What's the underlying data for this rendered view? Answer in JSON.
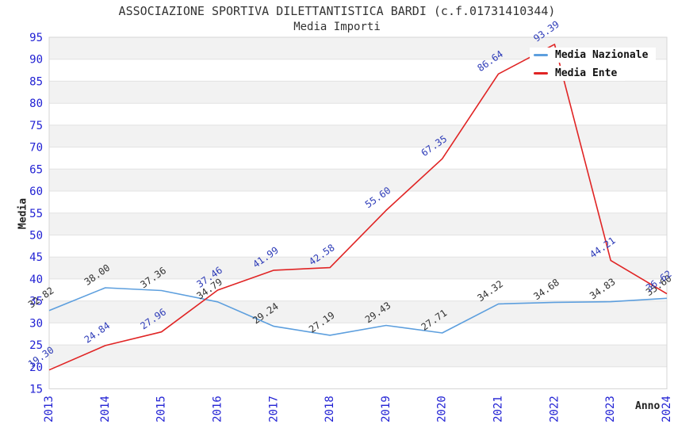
{
  "chart": {
    "title": "ASSOCIAZIONE SPORTIVA DILETTANTISTICA BARDI (c.f.01731410344)",
    "subtitle": "Media Importi",
    "ylabel": "Media",
    "xlabel": "Anno"
  },
  "chart_data": {
    "type": "line",
    "title": "ASSOCIAZIONE SPORTIVA DILETTANTISTICA BARDI (c.f.01731410344)",
    "subtitle": "Media Importi",
    "xlabel": "Anno",
    "ylabel": "Media",
    "x": [
      "2013",
      "2014",
      "2015",
      "2016",
      "2017",
      "2018",
      "2019",
      "2020",
      "2021",
      "2022",
      "2023",
      "2024"
    ],
    "series": [
      {
        "name": "Media Nazionale",
        "color": "#5d9fde",
        "label_color": "#333333",
        "values": [
          32.82,
          38.0,
          37.36,
          34.79,
          29.24,
          27.19,
          29.43,
          27.71,
          34.32,
          34.68,
          34.83,
          35.6
        ]
      },
      {
        "name": "Media Ente",
        "color": "#e02424",
        "label_color": "#2e3cb8",
        "values": [
          19.3,
          24.84,
          27.96,
          37.46,
          41.99,
          42.58,
          55.6,
          67.35,
          86.64,
          93.39,
          44.21,
          36.62
        ]
      }
    ],
    "ylim": [
      15,
      95
    ],
    "ytick_step": 5,
    "grid": true,
    "legend_position": "top-right",
    "band_color": "#f2f2f2",
    "grid_color": "#e2e2e2",
    "border_color": "#d6d6d6",
    "tick_color": "#2222d4",
    "label_decimals": 2,
    "label_rotation_deg": -35
  }
}
